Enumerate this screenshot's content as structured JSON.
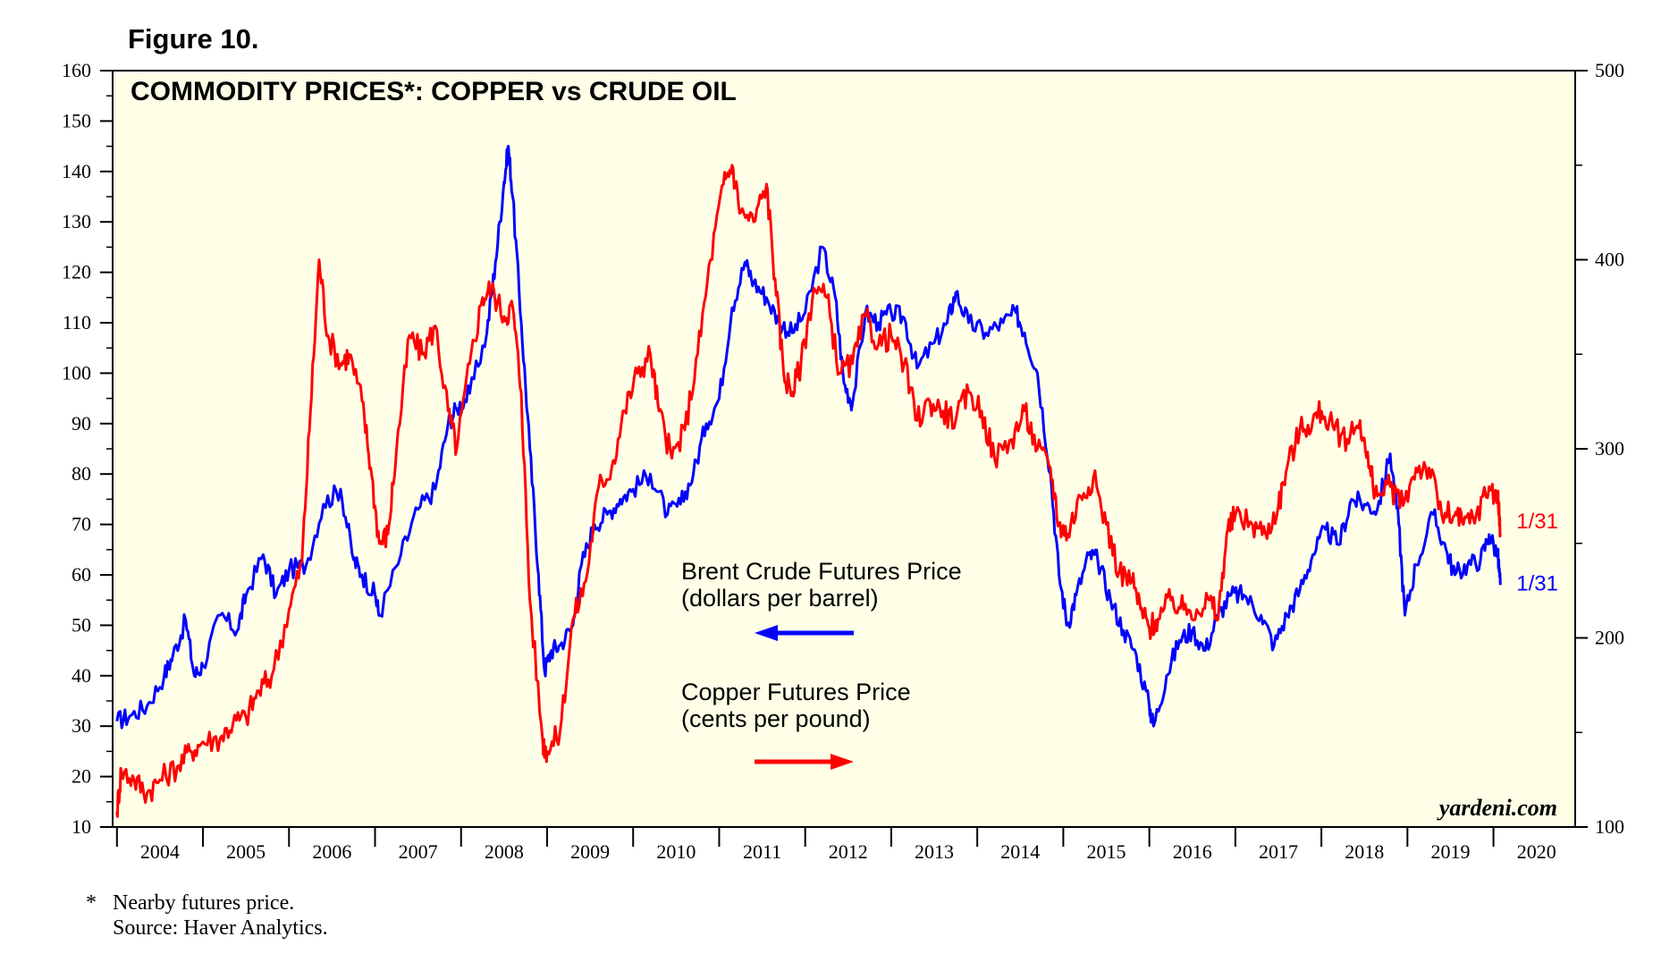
{
  "figure_label": "Figure 10.",
  "footnote": {
    "marker": "*",
    "note": "Nearby futures price.",
    "source": "Source: Haver Analytics."
  },
  "chart_data": {
    "type": "line",
    "title": "COMMODITY PRICES*: COPPER vs CRUDE OIL",
    "watermark": "yardeni.com",
    "background_color": "#ffffe8",
    "x_range": [
      2003.95,
      2020.95
    ],
    "x_tick_labels": [
      "2004",
      "2005",
      "2006",
      "2007",
      "2008",
      "2009",
      "2010",
      "2011",
      "2012",
      "2013",
      "2014",
      "2015",
      "2016",
      "2017",
      "2018",
      "2019",
      "2020"
    ],
    "left_axis": {
      "label": "Brent Crude Futures Price (dollars per barrel)",
      "range": [
        10,
        160
      ],
      "ticks": [
        10,
        20,
        30,
        40,
        50,
        60,
        70,
        80,
        90,
        100,
        110,
        120,
        130,
        140,
        150,
        160
      ]
    },
    "right_axis": {
      "label": "Copper Futures Price (cents per pound)",
      "range": [
        100,
        500
      ],
      "ticks": [
        100,
        200,
        300,
        400,
        500
      ]
    },
    "legend": [
      {
        "line1": "Brent Crude Futures Price",
        "line2": "(dollars per barrel)",
        "color": "#0000ff",
        "arrow": "left"
      },
      {
        "line1": "Copper Futures Price",
        "line2": "(cents per pound)",
        "color": "#ff0000",
        "arrow": "right"
      }
    ],
    "series": [
      {
        "name": "Brent Crude Futures Price",
        "axis": "left",
        "color": "#0000ff",
        "end_label": "1/31",
        "points": [
          [
            2004.0,
            31
          ],
          [
            2004.15,
            32
          ],
          [
            2004.35,
            34
          ],
          [
            2004.55,
            40
          ],
          [
            2004.65,
            44
          ],
          [
            2004.8,
            51
          ],
          [
            2004.9,
            40
          ],
          [
            2005.0,
            42
          ],
          [
            2005.2,
            52
          ],
          [
            2005.4,
            49
          ],
          [
            2005.5,
            56
          ],
          [
            2005.7,
            64
          ],
          [
            2005.85,
            56
          ],
          [
            2006.0,
            61
          ],
          [
            2006.2,
            62
          ],
          [
            2006.4,
            74
          ],
          [
            2006.6,
            77
          ],
          [
            2006.75,
            63
          ],
          [
            2006.85,
            60
          ],
          [
            2007.0,
            56
          ],
          [
            2007.05,
            52
          ],
          [
            2007.3,
            64
          ],
          [
            2007.5,
            73
          ],
          [
            2007.7,
            77
          ],
          [
            2007.85,
            90
          ],
          [
            2007.95,
            93
          ],
          [
            2008.1,
            96
          ],
          [
            2008.3,
            108
          ],
          [
            2008.4,
            122
          ],
          [
            2008.5,
            138
          ],
          [
            2008.55,
            145
          ],
          [
            2008.6,
            135
          ],
          [
            2008.7,
            110
          ],
          [
            2008.8,
            85
          ],
          [
            2008.9,
            60
          ],
          [
            2008.97,
            41
          ],
          [
            2009.05,
            45
          ],
          [
            2009.15,
            46
          ],
          [
            2009.3,
            50
          ],
          [
            2009.4,
            62
          ],
          [
            2009.55,
            70
          ],
          [
            2009.7,
            72
          ],
          [
            2009.85,
            75
          ],
          [
            2010.0,
            77
          ],
          [
            2010.2,
            80
          ],
          [
            2010.4,
            72
          ],
          [
            2010.55,
            74
          ],
          [
            2010.7,
            80
          ],
          [
            2010.85,
            90
          ],
          [
            2011.0,
            95
          ],
          [
            2011.15,
            113
          ],
          [
            2011.3,
            122
          ],
          [
            2011.4,
            118
          ],
          [
            2011.55,
            115
          ],
          [
            2011.7,
            110
          ],
          [
            2011.85,
            108
          ],
          [
            2012.0,
            112
          ],
          [
            2012.2,
            125
          ],
          [
            2012.35,
            115
          ],
          [
            2012.45,
            98
          ],
          [
            2012.55,
            94
          ],
          [
            2012.7,
            112
          ],
          [
            2012.85,
            110
          ],
          [
            2013.0,
            112
          ],
          [
            2013.15,
            111
          ],
          [
            2013.3,
            101
          ],
          [
            2013.5,
            106
          ],
          [
            2013.65,
            110
          ],
          [
            2013.75,
            116
          ],
          [
            2013.9,
            110
          ],
          [
            2014.1,
            108
          ],
          [
            2014.3,
            110
          ],
          [
            2014.45,
            112
          ],
          [
            2014.55,
            108
          ],
          [
            2014.7,
            100
          ],
          [
            2014.85,
            80
          ],
          [
            2014.95,
            60
          ],
          [
            2015.05,
            50
          ],
          [
            2015.15,
            56
          ],
          [
            2015.3,
            64
          ],
          [
            2015.4,
            63
          ],
          [
            2015.55,
            55
          ],
          [
            2015.7,
            49
          ],
          [
            2015.85,
            44
          ],
          [
            2016.0,
            34
          ],
          [
            2016.05,
            30
          ],
          [
            2016.2,
            40
          ],
          [
            2016.35,
            47
          ],
          [
            2016.5,
            49
          ],
          [
            2016.65,
            45
          ],
          [
            2016.8,
            52
          ],
          [
            2016.95,
            56
          ],
          [
            2017.1,
            56
          ],
          [
            2017.3,
            52
          ],
          [
            2017.45,
            46
          ],
          [
            2017.6,
            52
          ],
          [
            2017.75,
            57
          ],
          [
            2017.9,
            64
          ],
          [
            2018.05,
            69
          ],
          [
            2018.2,
            66
          ],
          [
            2018.35,
            75
          ],
          [
            2018.5,
            74
          ],
          [
            2018.65,
            73
          ],
          [
            2018.8,
            84
          ],
          [
            2018.9,
            70
          ],
          [
            2018.97,
            52
          ],
          [
            2019.1,
            62
          ],
          [
            2019.3,
            72
          ],
          [
            2019.45,
            65
          ],
          [
            2019.55,
            60
          ],
          [
            2019.7,
            62
          ],
          [
            2019.85,
            63
          ],
          [
            2019.95,
            68
          ],
          [
            2020.05,
            64
          ],
          [
            2020.08,
            58
          ]
        ]
      },
      {
        "name": "Copper Futures Price",
        "axis": "right",
        "color": "#ff0000",
        "end_label": "1/31",
        "points": [
          [
            2004.0,
            108
          ],
          [
            2004.05,
            130
          ],
          [
            2004.2,
            125
          ],
          [
            2004.35,
            118
          ],
          [
            2004.5,
            125
          ],
          [
            2004.7,
            132
          ],
          [
            2004.85,
            140
          ],
          [
            2005.0,
            145
          ],
          [
            2005.2,
            147
          ],
          [
            2005.35,
            155
          ],
          [
            2005.5,
            158
          ],
          [
            2005.65,
            172
          ],
          [
            2005.8,
            180
          ],
          [
            2006.0,
            215
          ],
          [
            2006.15,
            240
          ],
          [
            2006.25,
            320
          ],
          [
            2006.35,
            400
          ],
          [
            2006.45,
            360
          ],
          [
            2006.6,
            345
          ],
          [
            2006.7,
            350
          ],
          [
            2006.85,
            325
          ],
          [
            2006.95,
            290
          ],
          [
            2007.05,
            250
          ],
          [
            2007.15,
            255
          ],
          [
            2007.25,
            300
          ],
          [
            2007.4,
            360
          ],
          [
            2007.55,
            350
          ],
          [
            2007.7,
            365
          ],
          [
            2007.85,
            320
          ],
          [
            2007.95,
            300
          ],
          [
            2008.1,
            345
          ],
          [
            2008.25,
            380
          ],
          [
            2008.35,
            385
          ],
          [
            2008.5,
            370
          ],
          [
            2008.6,
            375
          ],
          [
            2008.7,
            330
          ],
          [
            2008.8,
            220
          ],
          [
            2008.95,
            145
          ],
          [
            2009.0,
            140
          ],
          [
            2009.15,
            150
          ],
          [
            2009.3,
            210
          ],
          [
            2009.45,
            230
          ],
          [
            2009.6,
            280
          ],
          [
            2009.75,
            290
          ],
          [
            2009.9,
            320
          ],
          [
            2010.05,
            340
          ],
          [
            2010.2,
            350
          ],
          [
            2010.3,
            320
          ],
          [
            2010.45,
            295
          ],
          [
            2010.6,
            310
          ],
          [
            2010.75,
            350
          ],
          [
            2010.9,
            400
          ],
          [
            2011.05,
            440
          ],
          [
            2011.15,
            450
          ],
          [
            2011.25,
            425
          ],
          [
            2011.4,
            420
          ],
          [
            2011.55,
            440
          ],
          [
            2011.65,
            390
          ],
          [
            2011.75,
            340
          ],
          [
            2011.85,
            330
          ],
          [
            2011.95,
            345
          ],
          [
            2012.1,
            385
          ],
          [
            2012.25,
            380
          ],
          [
            2012.4,
            340
          ],
          [
            2012.55,
            345
          ],
          [
            2012.7,
            370
          ],
          [
            2012.85,
            355
          ],
          [
            2013.0,
            360
          ],
          [
            2013.15,
            345
          ],
          [
            2013.3,
            315
          ],
          [
            2013.45,
            325
          ],
          [
            2013.6,
            320
          ],
          [
            2013.75,
            315
          ],
          [
            2013.9,
            330
          ],
          [
            2014.05,
            320
          ],
          [
            2014.2,
            295
          ],
          [
            2014.4,
            305
          ],
          [
            2014.55,
            320
          ],
          [
            2014.7,
            300
          ],
          [
            2014.85,
            290
          ],
          [
            2014.95,
            260
          ],
          [
            2015.05,
            255
          ],
          [
            2015.2,
            275
          ],
          [
            2015.35,
            285
          ],
          [
            2015.5,
            260
          ],
          [
            2015.65,
            235
          ],
          [
            2015.8,
            230
          ],
          [
            2015.9,
            215
          ],
          [
            2016.0,
            205
          ],
          [
            2016.1,
            210
          ],
          [
            2016.25,
            220
          ],
          [
            2016.4,
            215
          ],
          [
            2016.55,
            215
          ],
          [
            2016.7,
            220
          ],
          [
            2016.8,
            210
          ],
          [
            2016.9,
            255
          ],
          [
            2017.0,
            265
          ],
          [
            2017.2,
            260
          ],
          [
            2017.35,
            255
          ],
          [
            2017.5,
            270
          ],
          [
            2017.6,
            290
          ],
          [
            2017.75,
            310
          ],
          [
            2017.9,
            315
          ],
          [
            2018.0,
            320
          ],
          [
            2018.15,
            310
          ],
          [
            2018.3,
            305
          ],
          [
            2018.45,
            315
          ],
          [
            2018.55,
            290
          ],
          [
            2018.65,
            275
          ],
          [
            2018.8,
            280
          ],
          [
            2018.95,
            270
          ],
          [
            2019.1,
            290
          ],
          [
            2019.25,
            290
          ],
          [
            2019.4,
            265
          ],
          [
            2019.55,
            265
          ],
          [
            2019.65,
            260
          ],
          [
            2019.8,
            265
          ],
          [
            2019.95,
            280
          ],
          [
            2020.05,
            275
          ],
          [
            2020.08,
            255
          ]
        ]
      }
    ]
  }
}
